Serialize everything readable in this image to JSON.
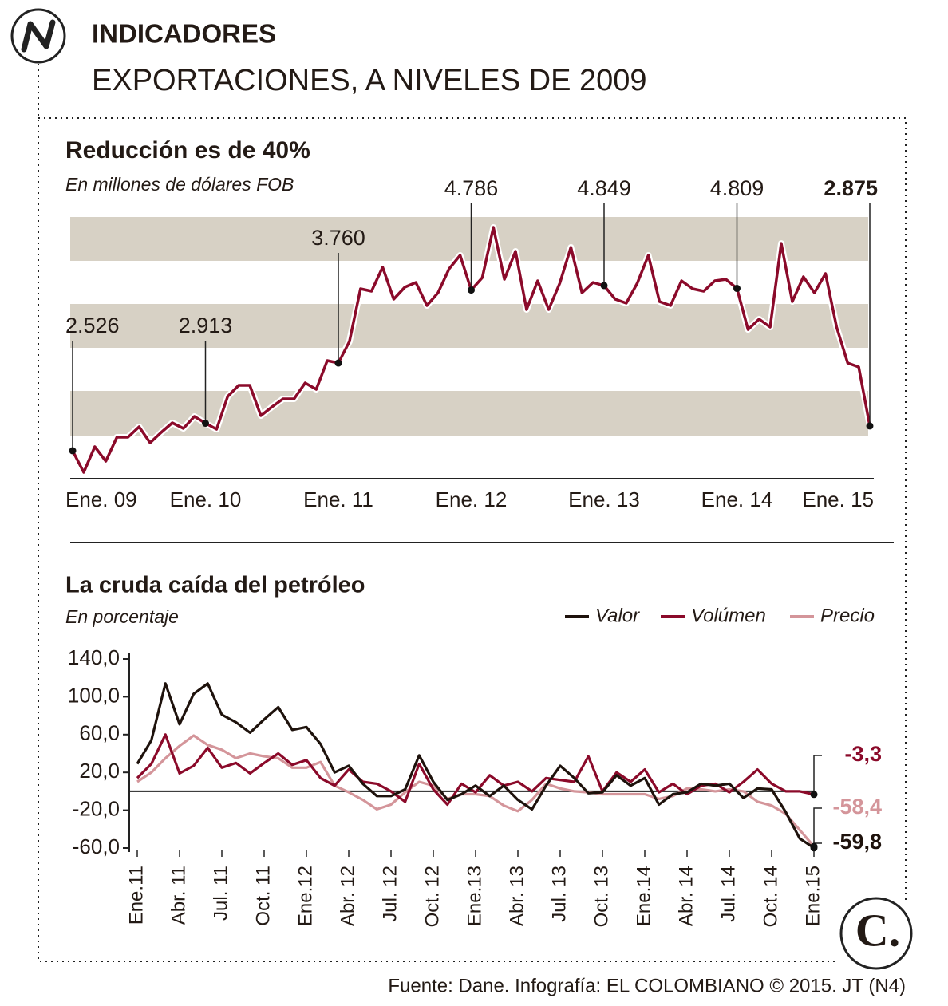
{
  "header": {
    "section": "INDICADORES",
    "title": "EXPORTACIONES, A NIVELES DE 2009"
  },
  "chart_data": [
    {
      "type": "line",
      "title": "Reducción es de 40%",
      "subtitle": "En millones de dólares FOB",
      "categories": [
        "Ene. 09",
        null,
        null,
        null,
        null,
        null,
        null,
        null,
        null,
        null,
        null,
        null,
        "Ene. 10",
        null,
        null,
        null,
        null,
        null,
        null,
        null,
        null,
        null,
        null,
        null,
        "Ene. 11",
        null,
        null,
        null,
        null,
        null,
        null,
        null,
        null,
        null,
        null,
        null,
        "Ene. 12",
        null,
        null,
        null,
        null,
        null,
        null,
        null,
        null,
        null,
        null,
        null,
        "Ene. 13",
        null,
        null,
        null,
        null,
        null,
        null,
        null,
        null,
        null,
        null,
        null,
        "Ene. 14",
        null,
        null,
        null,
        null,
        null,
        null,
        null,
        null,
        null,
        null,
        null,
        "Ene. 15"
      ],
      "values": [
        2526,
        2223,
        2582,
        2380,
        2717,
        2717,
        2863,
        2638,
        2784,
        2919,
        2840,
        3009,
        2913,
        2829,
        3289,
        3446,
        3446,
        3020,
        3143,
        3255,
        3255,
        3480,
        3390,
        3794,
        3760,
        4063,
        4804,
        4770,
        5107,
        4658,
        4826,
        4893,
        4568,
        4748,
        5084,
        5275,
        4786,
        4961,
        5668,
        4938,
        5331,
        4512,
        4916,
        4512,
        4882,
        5387,
        4748,
        4893,
        4849,
        4658,
        4602,
        4882,
        5275,
        4624,
        4568,
        4916,
        4804,
        4770,
        4916,
        4938,
        4809,
        4231,
        4377,
        4265,
        5443,
        4624,
        4972,
        4748,
        5017,
        4265,
        3760,
        3704,
        2875
      ],
      "value_labels": [
        "2.526",
        null,
        null,
        null,
        null,
        null,
        null,
        null,
        null,
        null,
        null,
        null,
        "2.913",
        null,
        null,
        null,
        null,
        null,
        null,
        null,
        null,
        null,
        null,
        null,
        "3.760",
        null,
        null,
        null,
        null,
        null,
        null,
        null,
        null,
        null,
        null,
        null,
        "4.786",
        null,
        null,
        null,
        null,
        null,
        null,
        null,
        null,
        null,
        null,
        null,
        "4.849",
        null,
        null,
        null,
        null,
        null,
        null,
        null,
        null,
        null,
        null,
        null,
        "4.809",
        null,
        null,
        null,
        null,
        null,
        null,
        null,
        null,
        null,
        null,
        null,
        "2.875"
      ],
      "color": "#8b0a2a"
    },
    {
      "type": "line",
      "title": "La cruda caída del petróleo",
      "subtitle": "En porcentaje",
      "categories": [
        "Ene.11",
        null,
        null,
        "Abr. 11",
        null,
        null,
        "Jul. 11",
        null,
        null,
        "Oct. 11",
        null,
        null,
        "Ene.12",
        null,
        null,
        "Abr. 12",
        null,
        null,
        "Jul. 12",
        null,
        null,
        "Oct. 12",
        null,
        null,
        "Ene.13",
        null,
        null,
        "Abr. 13",
        null,
        null,
        "Jul. 13",
        null,
        null,
        "Oct. 13",
        null,
        null,
        "Ene.14",
        null,
        null,
        "Abr. 14",
        null,
        null,
        "Jul. 14",
        null,
        null,
        "Oct. 14",
        null,
        null,
        "Ene.15"
      ],
      "series": [
        {
          "name": "Valor",
          "color": "#1e120c",
          "values": [
            29,
            54,
            114,
            71,
            103,
            114,
            81,
            73,
            62,
            76,
            89,
            65,
            68,
            50,
            20,
            27,
            8,
            -5,
            -5,
            2,
            38,
            10,
            -9,
            -3,
            6,
            -5,
            6,
            -9,
            -19,
            6,
            27,
            14,
            -2,
            -1,
            17,
            6,
            14,
            -14,
            -3,
            -1,
            8,
            6,
            8,
            -7,
            3,
            2,
            -22,
            -50,
            -59.8
          ],
          "value_labels": [
            null,
            null,
            null,
            null,
            null,
            null,
            null,
            null,
            null,
            null,
            null,
            null,
            null,
            null,
            null,
            null,
            null,
            null,
            null,
            null,
            null,
            null,
            null,
            null,
            null,
            null,
            null,
            null,
            null,
            null,
            null,
            null,
            null,
            null,
            null,
            null,
            null,
            null,
            null,
            null,
            null,
            null,
            null,
            null,
            null,
            null,
            null,
            null,
            "-59,8"
          ]
        },
        {
          "name": "Volúmen",
          "color": "#8b0a2a",
          "values": [
            14,
            29,
            60,
            19,
            27,
            46,
            25,
            30,
            19,
            30,
            40,
            28,
            33,
            14,
            6,
            23,
            10,
            8,
            0,
            -11,
            29,
            2,
            -14,
            8,
            -1,
            17,
            6,
            10,
            0,
            14,
            12,
            10,
            37,
            0,
            20,
            10,
            23,
            -1,
            8,
            -3,
            6,
            8,
            -1,
            10,
            23,
            8,
            0,
            0,
            -3.3
          ],
          "value_labels": [
            null,
            null,
            null,
            null,
            null,
            null,
            null,
            null,
            null,
            null,
            null,
            null,
            null,
            null,
            null,
            null,
            null,
            null,
            null,
            null,
            null,
            null,
            null,
            null,
            null,
            null,
            null,
            null,
            null,
            null,
            null,
            null,
            null,
            null,
            null,
            null,
            null,
            null,
            null,
            null,
            null,
            null,
            null,
            null,
            null,
            null,
            null,
            null,
            "-3,3"
          ]
        },
        {
          "name": "Precio",
          "color": "#d4959a",
          "values": [
            10,
            20,
            35,
            48,
            59,
            49,
            44,
            35,
            40,
            37,
            35,
            25,
            25,
            31,
            6,
            -1,
            -9,
            -19,
            -14,
            -1,
            10,
            6,
            -8,
            -3,
            -3,
            -5,
            -15,
            -21,
            -9,
            8,
            3,
            0,
            -1,
            -3,
            -3,
            -3,
            -3,
            -8,
            -5,
            3,
            2,
            0,
            2,
            0,
            -11,
            -15,
            -24,
            -41,
            -58.4
          ],
          "value_labels": [
            null,
            null,
            null,
            null,
            null,
            null,
            null,
            null,
            null,
            null,
            null,
            null,
            null,
            null,
            null,
            null,
            null,
            null,
            null,
            null,
            null,
            null,
            null,
            null,
            null,
            null,
            null,
            null,
            null,
            null,
            null,
            null,
            null,
            null,
            null,
            null,
            null,
            null,
            null,
            null,
            null,
            null,
            null,
            null,
            null,
            null,
            null,
            null,
            "-58,4"
          ]
        }
      ],
      "ylim": [
        -60,
        140
      ],
      "yticks": [
        {
          "value": 140,
          "label": "140,0"
        },
        {
          "value": 100,
          "label": "100,0"
        },
        {
          "value": 60,
          "label": "60,0"
        },
        {
          "value": 20,
          "label": "20,0"
        },
        {
          "value": -20,
          "label": "-20,0"
        },
        {
          "value": -60,
          "label": "-60,0"
        }
      ],
      "legend": "top-right"
    }
  ],
  "footer": {
    "source": "Fuente: Dane. Infografía: EL COLOMBIANO © 2015. JT (N4)",
    "logo": "C."
  }
}
